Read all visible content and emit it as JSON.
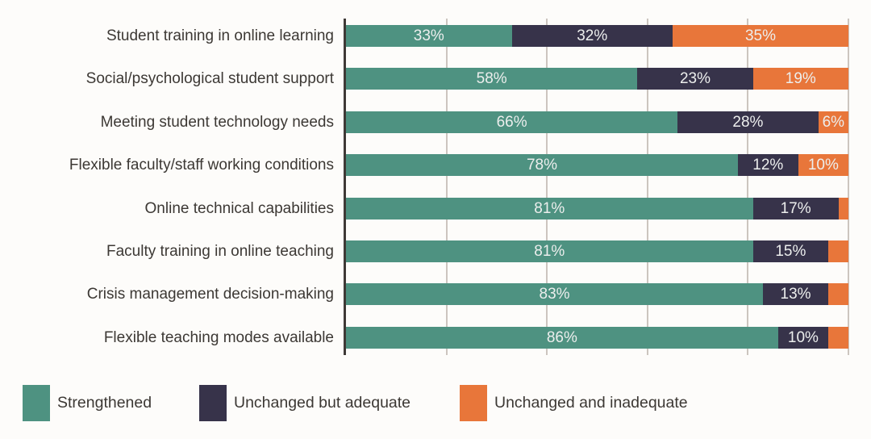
{
  "chart_data": {
    "type": "bar",
    "orientation": "horizontal",
    "stacked": true,
    "title": "",
    "xlabel": "",
    "ylabel": "",
    "xlim": [
      0,
      100
    ],
    "grid": true,
    "gridlines": [
      20,
      40,
      60,
      80,
      100
    ],
    "value_suffix": "%",
    "label_min_value": 5,
    "legend_position": "bottom",
    "categories": [
      "Student training in online learning",
      "Social/psychological student support",
      "Meeting student technology needs",
      "Flexible faculty/staff working conditions",
      "Online technical capabilities",
      "Faculty training in online teaching",
      "Crisis management decision-making",
      "Flexible teaching modes available"
    ],
    "series": [
      {
        "name": "Strengthened",
        "color": "#4e9281",
        "values": [
          33,
          58,
          66,
          78,
          81,
          81,
          83,
          86
        ]
      },
      {
        "name": "Unchanged but adequate",
        "color": "#37334a",
        "values": [
          32,
          23,
          28,
          12,
          17,
          15,
          13,
          10
        ]
      },
      {
        "name": "Unchanged and inadequate",
        "color": "#e8763a",
        "values": [
          35,
          19,
          6,
          10,
          2,
          4,
          4,
          4
        ]
      }
    ]
  },
  "style": {
    "background": "#fdfcfa",
    "axis_color": "#3e3936",
    "gridline_color": "#ccc5bf",
    "text_color": "#3c3834",
    "bar_label_color": "#eceeed"
  }
}
